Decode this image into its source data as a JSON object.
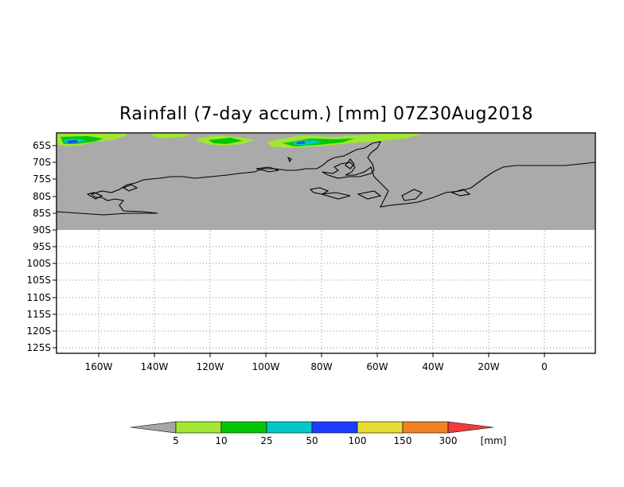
{
  "title": "Rainfall (7-day accum.) [mm] 07Z30Aug2018",
  "lat_ticks": [
    "65S",
    "70S",
    "75S",
    "80S",
    "85S",
    "90S",
    "95S",
    "100S",
    "105S",
    "110S",
    "115S",
    "120S",
    "125S"
  ],
  "lon_ticks": [
    "160W",
    "140W",
    "120W",
    "100W",
    "80W",
    "60W",
    "40W",
    "20W",
    "0"
  ],
  "colorbar": {
    "levels": [
      "5",
      "10",
      "25",
      "50",
      "100",
      "150",
      "300"
    ],
    "unit": "[mm]",
    "colors": {
      "below": "#a6a6a6",
      "bins": [
        "#a0e632",
        "#00c800",
        "#00c8c8",
        "#1e3cff",
        "#e6dc32",
        "#f08228"
      ],
      "above": "#f03c3c"
    }
  },
  "map": {
    "land_color": "#aaaaaa",
    "grid": "dotted"
  }
}
